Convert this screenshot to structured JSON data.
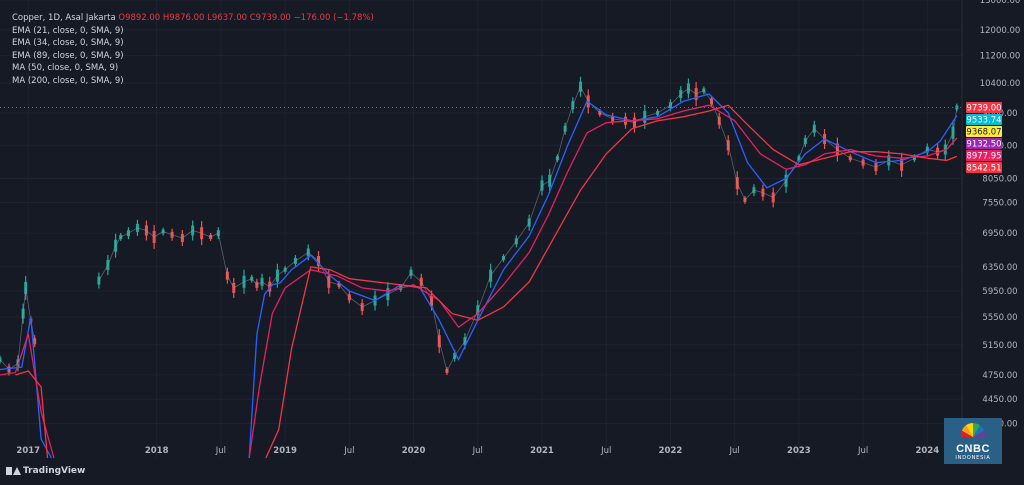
{
  "legend": {
    "symbol": "Copper, 1D, Asal Jakarta",
    "ohlc": "O9892.00  H9876.00  L9637.00  C9739.00  −176.00 (−1.78%)",
    "indicators": [
      "EMA (21, close, 0, SMA, 9)",
      "EMA (34, close, 0, SMA, 9)",
      "EMA (89, close, 0, SMA, 9)",
      "MA (50, close, 0, SMA, 9)",
      "MA (200, close, 0, SMA, 9)"
    ]
  },
  "branding": {
    "platform": "TradingView",
    "logo_text": "CNBC",
    "logo_sub": "INDONESIA"
  },
  "colors": {
    "background": "#161a25",
    "up": "#26a69a",
    "down": "#ef5350",
    "ema21": "#2962ff",
    "ema34": "#00bcd4",
    "ema89": "#e91e63",
    "ma50": "#9c27b0",
    "ma200": "#f23645"
  },
  "chart_data": {
    "type": "line",
    "title": "Copper, 1D",
    "xlabel": "",
    "ylabel": "",
    "ylim": [
      3800,
      13000
    ],
    "y_ticks": [
      "4170.00",
      "4450.00",
      "4750.00",
      "5150.00",
      "5550.00",
      "5950.00",
      "6350.00",
      "6950.00",
      "7550.00",
      "8050.00",
      "8800.00",
      "9600.00",
      "10400.00",
      "11200.00",
      "12000.00",
      "13000.00"
    ],
    "x_ticks": [
      {
        "label": "2017",
        "t": 2017.0
      },
      {
        "label": "2018",
        "t": 2018.0
      },
      {
        "label": "Jul",
        "t": 2018.5
      },
      {
        "label": "2019",
        "t": 2019.0
      },
      {
        "label": "Jul",
        "t": 2019.5
      },
      {
        "label": "2020",
        "t": 2020.0
      },
      {
        "label": "Jul",
        "t": 2020.5
      },
      {
        "label": "2021",
        "t": 2021.0
      },
      {
        "label": "Jul",
        "t": 2021.5
      },
      {
        "label": "2022",
        "t": 2022.0
      },
      {
        "label": "Jul",
        "t": 2022.5
      },
      {
        "label": "2023",
        "t": 2023.0
      },
      {
        "label": "Jul",
        "t": 2023.5
      },
      {
        "label": "2024",
        "t": 2024.0
      }
    ],
    "price_labels": [
      {
        "value": 9739.0,
        "text": "9739.00",
        "color": "#f23645"
      },
      {
        "value": 9533.74,
        "text": "9533.74",
        "color": "#00bcd4"
      },
      {
        "value": 9368.07,
        "text": "9368.07",
        "color": "#ffeb3b"
      },
      {
        "value": 9132.5,
        "text": "9132.50",
        "color": "#9c27b0"
      },
      {
        "value": 8977.95,
        "text": "8977.95",
        "color": "#e91e63"
      },
      {
        "value": 8542.51,
        "text": "8542.51",
        "color": "#f23645"
      }
    ],
    "last_price": 9739.0,
    "series": [
      {
        "name": "Copper",
        "x": [
          2016.78,
          2016.85,
          2016.92,
          2016.96,
          2016.98,
          2017.02,
          2017.05,
          2017.55,
          2017.62,
          2017.68,
          2017.72,
          2017.78,
          2017.85,
          2017.92,
          2017.98,
          2018.05,
          2018.12,
          2018.2,
          2018.28,
          2018.35,
          2018.42,
          2018.48,
          2018.55,
          2018.6,
          2018.68,
          2018.74,
          2018.78,
          2018.82,
          2018.88,
          2018.94,
          2019.0,
          2019.08,
          2019.18,
          2019.26,
          2019.34,
          2019.42,
          2019.5,
          2019.6,
          2019.7,
          2019.8,
          2019.9,
          2019.98,
          2020.06,
          2020.14,
          2020.2,
          2020.26,
          2020.32,
          2020.4,
          2020.5,
          2020.6,
          2020.7,
          2020.8,
          2020.9,
          2021.0,
          2021.06,
          2021.12,
          2021.18,
          2021.24,
          2021.3,
          2021.36,
          2021.45,
          2021.55,
          2021.65,
          2021.72,
          2021.8,
          2021.9,
          2022.0,
          2022.08,
          2022.14,
          2022.2,
          2022.26,
          2022.32,
          2022.38,
          2022.45,
          2022.52,
          2022.58,
          2022.65,
          2022.72,
          2022.8,
          2022.9,
          2023.0,
          2023.05,
          2023.12,
          2023.2,
          2023.3,
          2023.4,
          2023.5,
          2023.6,
          2023.7,
          2023.8,
          2023.9,
          2024.0,
          2024.08,
          2024.14,
          2024.2,
          2024.23
        ],
        "values": [
          4950,
          4820,
          4900,
          5600,
          6000,
          5500,
          5200,
          6120,
          6380,
          6720,
          6880,
          6950,
          7050,
          7000,
          6880,
          6980,
          6920,
          6860,
          7000,
          6950,
          6880,
          6950,
          6200,
          6000,
          6100,
          6150,
          6050,
          6100,
          6020,
          6200,
          6300,
          6450,
          6600,
          6450,
          6100,
          6050,
          5850,
          5700,
          5800,
          5900,
          6000,
          6250,
          6100,
          5800,
          5200,
          4800,
          5000,
          5200,
          5650,
          6200,
          6500,
          6800,
          7150,
          7900,
          8000,
          8500,
          9200,
          9800,
          10300,
          9900,
          9600,
          9450,
          9400,
          9350,
          9500,
          9600,
          9800,
          10100,
          10250,
          10100,
          10200,
          9900,
          9400,
          8800,
          7950,
          7600,
          7800,
          7750,
          7650,
          8000,
          8500,
          8900,
          9200,
          8950,
          8700,
          8500,
          8400,
          8300,
          8450,
          8350,
          8500,
          8700,
          8650,
          8700,
          9100,
          9739
        ]
      },
      {
        "name": "EMA (21, close, 0, SMA, 9)",
        "x": [
          2016.78,
          2016.95,
          2017.02,
          2017.1,
          2017.18,
          2018.72,
          2018.78,
          2018.84,
          2018.9,
          2018.96,
          2019.05,
          2019.2,
          2019.35,
          2019.5,
          2019.7,
          2019.9,
          2020.05,
          2020.2,
          2020.35,
          2020.5,
          2020.7,
          2020.9,
          2021.05,
          2021.2,
          2021.35,
          2021.5,
          2021.7,
          2021.9,
          2022.1,
          2022.3,
          2022.45,
          2022.6,
          2022.75,
          2022.9,
          2023.05,
          2023.2,
          2023.4,
          2023.6,
          2023.8,
          2024.0,
          2024.1,
          2024.23
        ],
        "values": [
          4820,
          4850,
          5550,
          4000,
          2400,
          2800,
          5300,
          5900,
          6050,
          6080,
          6300,
          6550,
          6200,
          5950,
          5800,
          6050,
          6000,
          5500,
          4950,
          5500,
          6300,
          6900,
          7700,
          8800,
          9900,
          9550,
          9400,
          9500,
          9900,
          10100,
          9600,
          8400,
          7850,
          8050,
          8600,
          8950,
          8650,
          8400,
          8450,
          8650,
          8900,
          9533
        ]
      },
      {
        "name": "EMA (89, close, 0, SMA, 9)",
        "x": [
          2016.78,
          2016.9,
          2017.0,
          2017.1,
          2017.2,
          2018.72,
          2018.8,
          2018.9,
          2019.0,
          2019.2,
          2019.4,
          2019.6,
          2019.8,
          2020.0,
          2020.2,
          2020.35,
          2020.5,
          2020.7,
          2020.9,
          2021.05,
          2021.2,
          2021.35,
          2021.5,
          2021.7,
          2021.9,
          2022.1,
          2022.3,
          2022.5,
          2022.7,
          2022.9,
          2023.05,
          2023.2,
          2023.4,
          2023.6,
          2023.8,
          2024.0,
          2024.15,
          2024.23
        ],
        "values": [
          4750,
          4780,
          5300,
          4300,
          3300,
          2700,
          4600,
          5600,
          6000,
          6300,
          6200,
          6000,
          5950,
          6050,
          5800,
          5400,
          5600,
          6050,
          6600,
          7300,
          8200,
          9100,
          9350,
          9400,
          9450,
          9650,
          9800,
          9400,
          8600,
          8250,
          8350,
          8600,
          8700,
          8550,
          8500,
          8550,
          8700,
          8977
        ]
      },
      {
        "name": "MA (200, close, 0, SMA, 9)",
        "x": [
          2016.9,
          2017.0,
          2017.1,
          2017.15,
          2018.85,
          2018.95,
          2019.05,
          2019.2,
          2019.35,
          2019.5,
          2019.7,
          2019.9,
          2020.1,
          2020.3,
          2020.5,
          2020.7,
          2020.9,
          2021.1,
          2021.3,
          2021.5,
          2021.7,
          2021.9,
          2022.1,
          2022.3,
          2022.45,
          2022.6,
          2022.8,
          2023.0,
          2023.2,
          2023.4,
          2023.6,
          2023.8,
          2024.0,
          2024.15,
          2024.23
        ],
        "values": [
          4750,
          4800,
          4600,
          3300,
          2800,
          4100,
          5100,
          6350,
          6300,
          6150,
          6100,
          6050,
          6000,
          5600,
          5500,
          5700,
          6100,
          6900,
          7800,
          8600,
          9200,
          9400,
          9500,
          9650,
          9800,
          9300,
          8700,
          8350,
          8500,
          8650,
          8650,
          8600,
          8500,
          8450,
          8542
        ]
      }
    ]
  }
}
